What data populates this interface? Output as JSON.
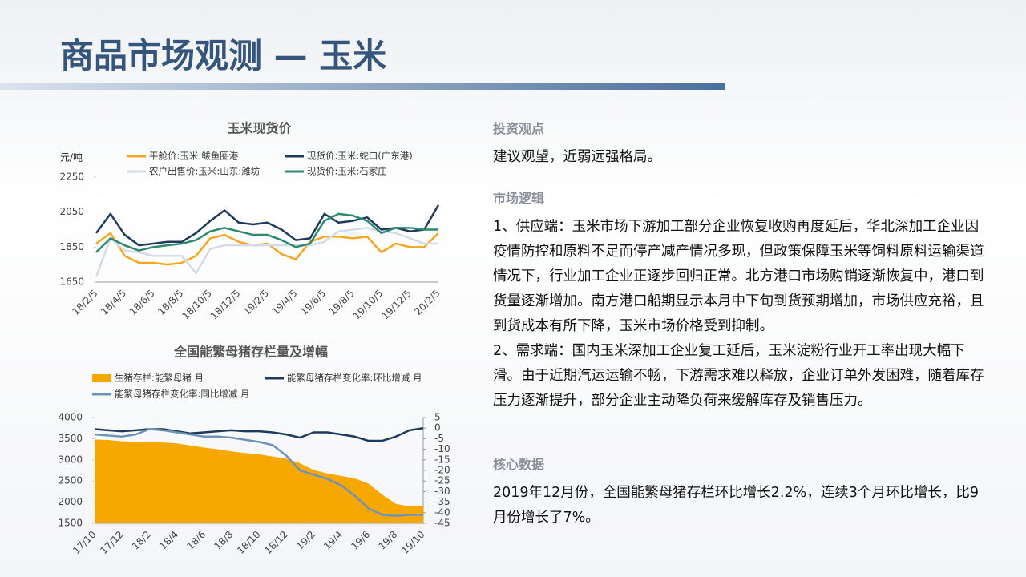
{
  "header": {
    "title": "商品市场观测 — 玉米"
  },
  "chart_data": [
    {
      "type": "line",
      "title": "玉米现货价",
      "y_label": "元/吨",
      "categories": [
        "18/2/5",
        null,
        "18/4/5",
        null,
        "18/6/5",
        null,
        "18/8/5",
        null,
        "18/10/5",
        null,
        "18/12/5",
        null,
        "19/2/5",
        null,
        "19/4/5",
        null,
        "19/6/5",
        null,
        "19/8/5",
        null,
        "19/10/5",
        null,
        "19/12/5",
        null,
        "20/2/5"
      ],
      "ylim": [
        1650,
        2250
      ],
      "yticks": [
        1650,
        1850,
        2050,
        2250
      ],
      "series": [
        {
          "name": "平舱价:玉米:鲅鱼圈港",
          "color": "#f5a623",
          "values": [
            1870,
            1930,
            1800,
            1760,
            1760,
            1750,
            1760,
            1800,
            1900,
            1920,
            1880,
            1860,
            1870,
            1810,
            1780,
            1880,
            1910,
            1910,
            1900,
            1910,
            1820,
            1870,
            1850,
            1850,
            1930
          ]
        },
        {
          "name": "现货价:玉米:蛇口(广东港)",
          "color": "#1f3a5a",
          "values": [
            1930,
            2040,
            1920,
            1860,
            1870,
            1880,
            1880,
            1930,
            2000,
            2060,
            1990,
            1980,
            1990,
            1950,
            1890,
            1900,
            2040,
            1990,
            2000,
            2020,
            1950,
            1960,
            1940,
            1950,
            2090
          ]
        },
        {
          "name": "农户出售价:玉米:山东:潍坊",
          "color": "#d3dbe6",
          "values": [
            1680,
            1900,
            1830,
            1820,
            1800,
            1800,
            1800,
            1700,
            1840,
            1860,
            1860,
            1860,
            1860,
            1860,
            1860,
            1860,
            1880,
            1940,
            1950,
            1960,
            1940,
            1930,
            1900,
            1870,
            1870
          ]
        },
        {
          "name": "现货价:玉米:石家庄",
          "color": "#2e8a6e",
          "values": [
            1820,
            1900,
            1860,
            1830,
            1850,
            1860,
            1870,
            1890,
            1940,
            1960,
            1940,
            1920,
            1920,
            1890,
            1850,
            1870,
            2000,
            2040,
            2030,
            2000,
            1930,
            1960,
            1960,
            1950,
            1950
          ]
        }
      ]
    },
    {
      "type": "combo",
      "title": "全国能繁母猪存栏量及增幅",
      "categories": [
        "17/10",
        null,
        "17/12",
        null,
        "18/2",
        null,
        "18/4",
        null,
        "18/6",
        null,
        "18/8",
        null,
        "18/10",
        null,
        "18/12",
        null,
        "19/2",
        null,
        "19/4",
        null,
        "19/6",
        null,
        "19/8",
        null,
        "19/10"
      ],
      "ylim": [
        1500,
        4000
      ],
      "yticks": [
        1500,
        2000,
        2500,
        3000,
        3500,
        4000
      ],
      "y2lim": [
        -45,
        5
      ],
      "y2ticks": [
        5,
        0,
        -5,
        -10,
        -15,
        -20,
        -25,
        -30,
        -35,
        -40,
        -45
      ],
      "series": [
        {
          "name": "生猪存栏:能繁母猪 月",
          "color": "#f7a800",
          "kind": "area",
          "values": [
            3480,
            3470,
            3440,
            3430,
            3420,
            3410,
            3390,
            3340,
            3290,
            3250,
            3200,
            3160,
            3130,
            3080,
            3030,
            2920,
            2760,
            2680,
            2620,
            2560,
            2440,
            2180,
            1960,
            1900,
            1900
          ]
        },
        {
          "name": "能繁母猪存栏变化率:环比增减 月",
          "color": "#1f3a5a",
          "axis": "y2",
          "values": [
            -0.5,
            -1,
            -1.5,
            -1,
            -0.5,
            -0.5,
            -1.5,
            -2.5,
            -2,
            -1.5,
            -1,
            -1.5,
            -1.5,
            -2,
            -3,
            -4.5,
            -2,
            -2,
            -3,
            -4,
            -6,
            -6,
            -4,
            -1,
            0
          ]
        },
        {
          "name": "能繁母猪存栏变化率:同比增减 月",
          "color": "#6f93b8",
          "axis": "y2",
          "values": [
            -3,
            -3.5,
            -4,
            -3,
            -0.5,
            -1,
            -2,
            -3,
            -4,
            -4,
            -4.5,
            -5.5,
            -6.5,
            -8,
            -13,
            -20,
            -22,
            -24,
            -27,
            -32,
            -38,
            -41,
            -41.5,
            -41,
            -41
          ]
        }
      ]
    }
  ],
  "text": {
    "sections": [
      {
        "heading": "投资观点",
        "paragraphs": [
          "建议观望，近弱远强格局。"
        ]
      },
      {
        "heading": "市场逻辑",
        "paragraphs": [
          "1、供应端：玉米市场下游加工部分企业恢复收购再度延后，华北深加工企业因疫情防控和原料不足而停产减产情况多现，但政策保障玉米等饲料原料运输渠道情况下，行业加工企业正逐步回归正常。北方港口市场购销逐渐恢复中，港口到货量逐渐增加。南方港口船期显示本月中下旬到货预期增加，市场供应充裕，且到货成本有所下降，玉米市场价格受到抑制。",
          "2、需求端：国内玉米深加工企业复工延后，玉米淀粉行业开工率出现大幅下滑。由于近期汽运运输不畅，下游需求难以释放，企业订单外发困难，随着库存压力逐渐提升，部分企业主动降负荷来缓解库存及销售压力。"
        ]
      },
      {
        "heading": "核心数据",
        "paragraphs": [
          "2019年12月份，全国能繁母猪存栏环比增长2.2%，连续3个月环比增长，比9月份增长了7%。"
        ]
      }
    ]
  }
}
